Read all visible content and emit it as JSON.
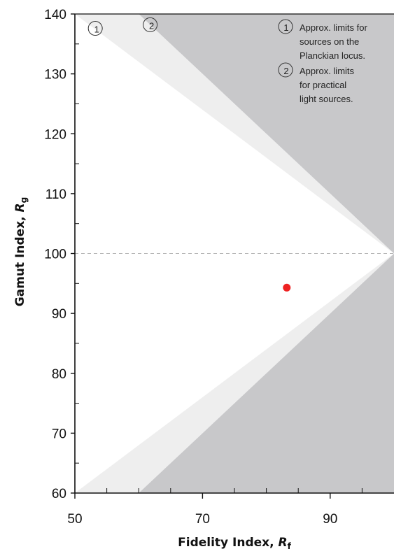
{
  "chart_data": {
    "type": "scatter",
    "xlabel": "Fidelity Index, ",
    "xlabel_sub": "R",
    "xlabel_subscript": "f",
    "ylabel": "Gamut Index, ",
    "ylabel_sub": "R",
    "ylabel_subscript": "g",
    "xlim": [
      50,
      100
    ],
    "ylim": [
      60,
      140
    ],
    "x_ticks": [
      50,
      70,
      90
    ],
    "y_ticks": [
      60,
      70,
      80,
      90,
      100,
      110,
      120,
      130,
      140
    ],
    "reference_line_y": 100,
    "point": {
      "x": 83.2,
      "y": 94.3,
      "color": "#ee2222"
    },
    "regions": {
      "outer_limit_polygon_upper": [
        [
          50,
          140
        ],
        [
          60,
          140
        ],
        [
          100,
          100
        ]
      ],
      "outer_limit_polygon_lower": [
        [
          50,
          60
        ],
        [
          60,
          60
        ],
        [
          100,
          100
        ]
      ],
      "inner_limit_upper": [
        [
          50,
          140
        ],
        [
          100,
          100
        ]
      ],
      "inner_limit_lower": [
        [
          50,
          60
        ],
        [
          100,
          100
        ]
      ],
      "shade_outer_color": "#c8c8ca",
      "shade_inner_color": "#eeeeee"
    },
    "legend": [
      {
        "marker": "1",
        "lines": [
          "Approx. limits for",
          "sources on the",
          "Planckian locus."
        ]
      },
      {
        "marker": "2",
        "lines": [
          "Approx. limits",
          "for practical",
          "light sources."
        ]
      }
    ],
    "region_markers": [
      {
        "marker": "1",
        "x": 53.2,
        "y": 137.6
      },
      {
        "marker": "2",
        "x": 61.8,
        "y": 138.2
      }
    ]
  }
}
